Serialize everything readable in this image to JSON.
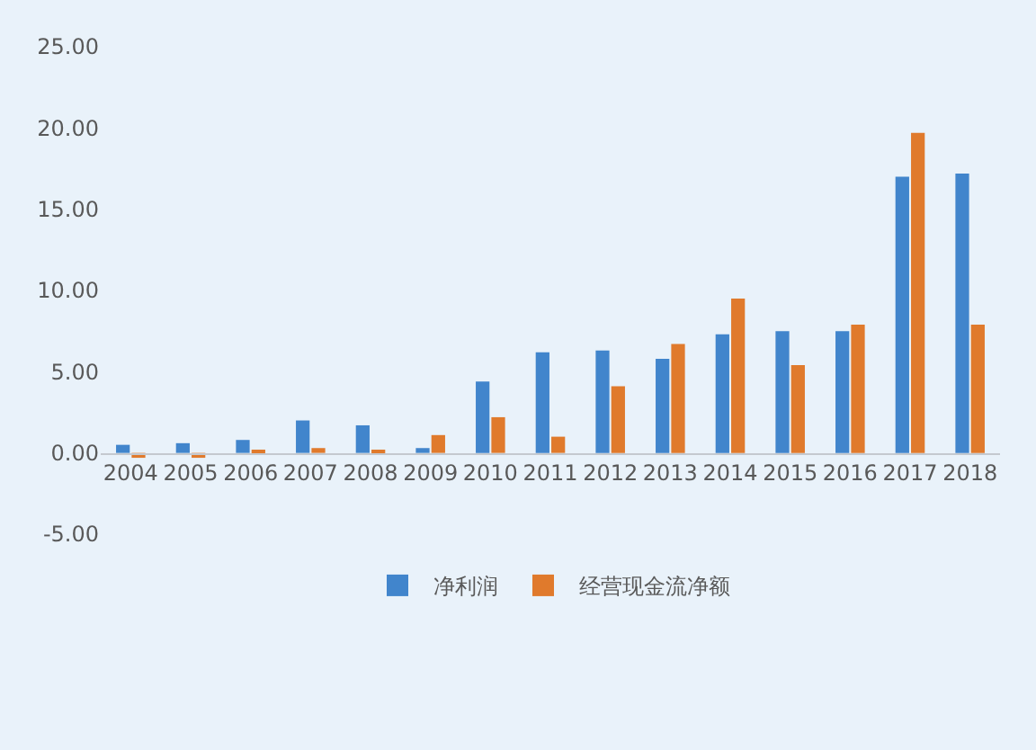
{
  "chart_data": {
    "type": "bar",
    "categories": [
      "2004",
      "2005",
      "2006",
      "2007",
      "2008",
      "2009",
      "2010",
      "2011",
      "2012",
      "2013",
      "2014",
      "2015",
      "2016",
      "2017",
      "2018"
    ],
    "series": [
      {
        "name": "净利润",
        "color": "#4185cc",
        "values": [
          0.5,
          0.6,
          0.8,
          2.0,
          1.7,
          0.3,
          4.4,
          6.2,
          6.3,
          5.8,
          7.3,
          7.5,
          7.5,
          17.0,
          17.2
        ]
      },
      {
        "name": "经营现金流净额",
        "color": "#e07a2c",
        "values": [
          -0.3,
          -0.3,
          0.1,
          0.3,
          0.1,
          1.1,
          2.2,
          1.0,
          4.1,
          6.7,
          9.5,
          5.4,
          7.9,
          19.7,
          7.9
        ]
      }
    ],
    "ylim": [
      -5,
      25
    ],
    "yticks": [
      {
        "value": -5,
        "label": "-5.00"
      },
      {
        "value": 0,
        "label": "0.00"
      },
      {
        "value": 5,
        "label": "5.00"
      },
      {
        "value": 10,
        "label": "10.00"
      },
      {
        "value": 15,
        "label": "15.00"
      },
      {
        "value": 20,
        "label": "20.00"
      },
      {
        "value": 25,
        "label": "25.00"
      }
    ],
    "grid": false,
    "legend": "bottom"
  }
}
